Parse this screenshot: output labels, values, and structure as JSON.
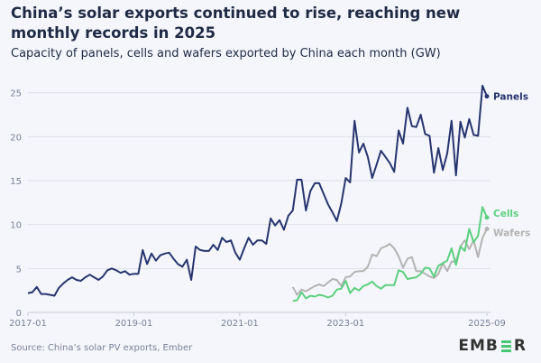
{
  "title": "China’s solar exports continued to rise, reaching new monthly records in 2025",
  "subtitle": "Capacity of panels, cells and wafers exported by China each month (GW)",
  "source": "Source: China’s solar PV exports, Ember",
  "logo": "EMBER",
  "chart_data": {
    "type": "line",
    "title": "China’s solar exports continued to rise, reaching new monthly records in 2025",
    "subtitle": "Capacity of panels, cells and wafers exported by China each month (GW)",
    "xlabel": "",
    "ylabel": "",
    "ylim": [
      0,
      25
    ],
    "yticks": [
      "0",
      "5",
      "10",
      "15",
      "20",
      "25"
    ],
    "xticks": [
      "2017-01",
      "2019-01",
      "2021-01",
      "2023-01",
      "2025-09"
    ],
    "grid": true,
    "legend": "direct labels at line ends",
    "x": [
      "2017-01",
      "2017-02",
      "2017-03",
      "2017-04",
      "2017-05",
      "2017-06",
      "2017-07",
      "2017-08",
      "2017-09",
      "2017-10",
      "2017-11",
      "2017-12",
      "2018-01",
      "2018-02",
      "2018-03",
      "2018-04",
      "2018-05",
      "2018-06",
      "2018-07",
      "2018-08",
      "2018-09",
      "2018-10",
      "2018-11",
      "2018-12",
      "2019-01",
      "2019-02",
      "2019-03",
      "2019-04",
      "2019-05",
      "2019-06",
      "2019-07",
      "2019-08",
      "2019-09",
      "2019-10",
      "2019-11",
      "2019-12",
      "2020-01",
      "2020-02",
      "2020-03",
      "2020-04",
      "2020-05",
      "2020-06",
      "2020-07",
      "2020-08",
      "2020-09",
      "2020-10",
      "2020-11",
      "2020-12",
      "2021-01",
      "2021-02",
      "2021-03",
      "2021-04",
      "2021-05",
      "2021-06",
      "2021-07",
      "2021-08",
      "2021-09",
      "2021-10",
      "2021-11",
      "2021-12",
      "2022-01",
      "2022-02",
      "2022-03",
      "2022-04",
      "2022-05",
      "2022-06",
      "2022-07",
      "2022-08",
      "2022-09",
      "2022-10",
      "2022-11",
      "2022-12",
      "2023-01",
      "2023-02",
      "2023-03",
      "2023-04",
      "2023-05",
      "2023-06",
      "2023-07",
      "2023-08",
      "2023-09",
      "2023-10",
      "2023-11",
      "2023-12",
      "2024-01",
      "2024-02",
      "2024-03",
      "2024-04",
      "2024-05",
      "2024-06",
      "2024-07",
      "2024-08",
      "2024-09",
      "2024-10",
      "2024-11",
      "2024-12",
      "2025-01",
      "2025-02",
      "2025-03",
      "2025-04",
      "2025-05",
      "2025-06",
      "2025-07",
      "2025-08",
      "2025-09"
    ],
    "series": [
      {
        "name": "Panels",
        "color": "#27356e",
        "values": [
          2.2,
          2.3,
          2.9,
          2.1,
          2.1,
          2.0,
          1.9,
          2.8,
          3.3,
          3.7,
          4.0,
          3.7,
          3.6,
          4.0,
          4.3,
          4.0,
          3.7,
          4.1,
          4.8,
          5.0,
          4.8,
          4.5,
          4.7,
          4.3,
          4.4,
          4.4,
          7.1,
          5.5,
          6.7,
          5.9,
          6.5,
          6.7,
          6.8,
          6.1,
          5.5,
          5.2,
          6.0,
          3.7,
          7.5,
          7.1,
          7.0,
          7.0,
          7.7,
          7.1,
          8.5,
          8.0,
          8.2,
          6.8,
          6.0,
          7.3,
          8.5,
          7.7,
          8.2,
          8.2,
          7.8,
          10.7,
          9.9,
          10.5,
          9.4,
          11.0,
          11.6,
          15.1,
          15.1,
          11.6,
          13.8,
          14.7,
          14.7,
          13.5,
          12.3,
          11.4,
          10.4,
          12.4,
          15.3,
          14.8,
          21.8,
          18.2,
          19.2,
          17.7,
          15.3,
          16.8,
          18.4,
          17.7,
          17.0,
          16.0,
          20.7,
          19.2,
          23.3,
          21.2,
          21.1,
          22.5,
          20.3,
          20.1,
          15.9,
          18.7,
          16.2,
          18.1,
          21.8,
          15.6,
          21.7,
          19.9,
          22.0,
          20.2,
          20.1,
          25.8,
          24.6
        ]
      },
      {
        "name": "Cells",
        "color": "#5cd07f",
        "values": [
          null,
          null,
          null,
          null,
          null,
          null,
          null,
          null,
          null,
          null,
          null,
          null,
          null,
          null,
          null,
          null,
          null,
          null,
          null,
          null,
          null,
          null,
          null,
          null,
          null,
          null,
          null,
          null,
          null,
          null,
          null,
          null,
          null,
          null,
          null,
          null,
          null,
          null,
          null,
          null,
          null,
          null,
          null,
          null,
          null,
          null,
          null,
          null,
          null,
          null,
          null,
          null,
          null,
          null,
          null,
          null,
          null,
          null,
          null,
          null,
          1.3,
          1.4,
          2.3,
          1.6,
          1.9,
          1.8,
          2.0,
          1.9,
          1.7,
          1.9,
          2.6,
          2.7,
          3.6,
          2.2,
          2.8,
          2.5,
          3.0,
          3.2,
          3.5,
          3.0,
          2.7,
          3.1,
          3.1,
          3.1,
          4.8,
          4.6,
          3.8,
          3.9,
          4.0,
          4.4,
          5.1,
          5.0,
          4.1,
          5.3,
          5.6,
          5.9,
          7.3,
          5.4,
          7.5,
          7.0,
          9.5,
          8.0,
          8.7,
          12.0,
          10.8
        ]
      },
      {
        "name": "Wafers",
        "color": "#b5b3b3",
        "values": [
          null,
          null,
          null,
          null,
          null,
          null,
          null,
          null,
          null,
          null,
          null,
          null,
          null,
          null,
          null,
          null,
          null,
          null,
          null,
          null,
          null,
          null,
          null,
          null,
          null,
          null,
          null,
          null,
          null,
          null,
          null,
          null,
          null,
          null,
          null,
          null,
          null,
          null,
          null,
          null,
          null,
          null,
          null,
          null,
          null,
          null,
          null,
          null,
          null,
          null,
          null,
          null,
          null,
          null,
          null,
          null,
          null,
          null,
          null,
          null,
          2.9,
          2.0,
          2.6,
          2.4,
          2.7,
          3.0,
          3.2,
          3.0,
          3.4,
          3.8,
          3.7,
          3.0,
          4.0,
          4.1,
          4.6,
          4.7,
          4.7,
          5.2,
          6.6,
          6.4,
          7.3,
          7.5,
          7.8,
          7.3,
          6.4,
          5.1,
          6.1,
          6.3,
          4.7,
          4.7,
          4.4,
          4.1,
          3.9,
          4.4,
          5.6,
          4.7,
          5.8,
          5.8,
          7.5,
          8.2,
          7.2,
          8.2,
          6.3,
          8.5,
          9.5
        ]
      }
    ]
  }
}
